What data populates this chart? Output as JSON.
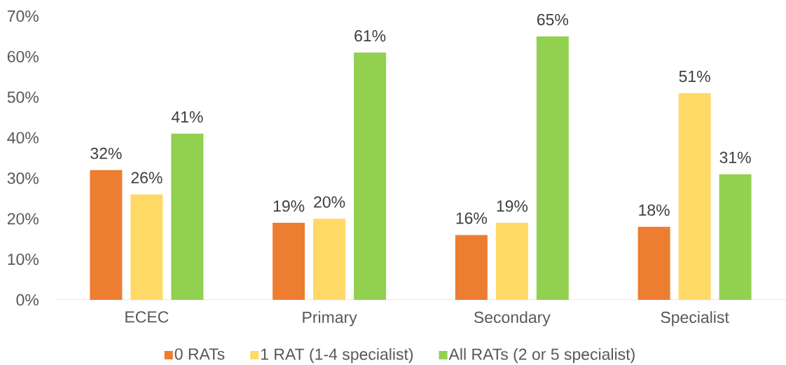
{
  "chart_data": {
    "type": "bar",
    "categories": [
      "ECEC",
      "Primary",
      "Secondary",
      "Specialist"
    ],
    "series": [
      {
        "name": "0 RATs",
        "color": "#ed7d31",
        "values": [
          32,
          19,
          16,
          18
        ],
        "value_labels": [
          "32%",
          "19%",
          "16%",
          "18%"
        ]
      },
      {
        "name": "1 RAT (1-4 specialist)",
        "color": "#ffd966",
        "values": [
          26,
          20,
          19,
          51
        ],
        "value_labels": [
          "26%",
          "20%",
          "19%",
          "51%"
        ]
      },
      {
        "name": "All RATs (2 or 5 specialist)",
        "color": "#92d050",
        "values": [
          41,
          61,
          65,
          31
        ],
        "value_labels": [
          "41%",
          "61%",
          "65%",
          "31%"
        ]
      }
    ],
    "ylim": [
      0,
      70
    ],
    "yticks": [
      {
        "value": 0,
        "label": "0%"
      },
      {
        "value": 10,
        "label": "10%"
      },
      {
        "value": 20,
        "label": "20%"
      },
      {
        "value": 30,
        "label": "30%"
      },
      {
        "value": 40,
        "label": "40%"
      },
      {
        "value": 50,
        "label": "50%"
      },
      {
        "value": 60,
        "label": "60%"
      },
      {
        "value": 70,
        "label": "70%"
      }
    ],
    "legend": "bottom"
  }
}
